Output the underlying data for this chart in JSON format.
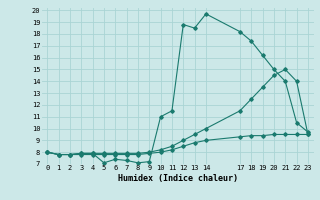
{
  "xlabel": "Humidex (Indice chaleur)",
  "bg_color": "#cce8e8",
  "grid_color": "#aad4d4",
  "line_color": "#1a7a6e",
  "xlim": [
    -0.5,
    23.5
  ],
  "ylim": [
    7,
    20.2
  ],
  "xticks": [
    0,
    1,
    2,
    3,
    4,
    5,
    6,
    7,
    8,
    9,
    10,
    11,
    12,
    13,
    14,
    17,
    18,
    19,
    20,
    21,
    22,
    23
  ],
  "yticks": [
    7,
    8,
    9,
    10,
    11,
    12,
    13,
    14,
    15,
    16,
    17,
    18,
    19,
    20
  ],
  "line1_x": [
    0,
    1,
    2,
    3,
    4,
    5,
    6,
    7,
    8,
    9,
    10,
    11,
    12,
    13,
    14,
    17,
    18,
    19,
    20,
    21,
    22,
    23
  ],
  "line1_y": [
    8,
    7.8,
    7.8,
    7.9,
    7.9,
    7.1,
    7.4,
    7.3,
    7.1,
    7.2,
    11.0,
    11.5,
    18.8,
    18.5,
    19.7,
    18.2,
    17.4,
    16.2,
    15.0,
    14.0,
    10.5,
    9.7
  ],
  "line2_x": [
    0,
    1,
    2,
    3,
    4,
    5,
    6,
    7,
    8,
    9,
    10,
    11,
    12,
    13,
    14,
    17,
    18,
    19,
    20,
    21,
    22,
    23
  ],
  "line2_y": [
    8,
    7.8,
    7.8,
    7.9,
    7.9,
    7.9,
    7.9,
    7.9,
    7.9,
    8.0,
    8.2,
    8.5,
    9.0,
    9.5,
    10.0,
    11.5,
    12.5,
    13.5,
    14.5,
    15.0,
    14.0,
    9.5
  ],
  "line3_x": [
    0,
    1,
    2,
    3,
    4,
    5,
    6,
    7,
    8,
    9,
    10,
    11,
    12,
    13,
    14,
    17,
    18,
    19,
    20,
    21,
    22,
    23
  ],
  "line3_y": [
    8,
    7.8,
    7.8,
    7.8,
    7.8,
    7.8,
    7.8,
    7.8,
    7.8,
    7.9,
    8.0,
    8.2,
    8.5,
    8.8,
    9.0,
    9.3,
    9.4,
    9.4,
    9.5,
    9.5,
    9.5,
    9.5
  ]
}
